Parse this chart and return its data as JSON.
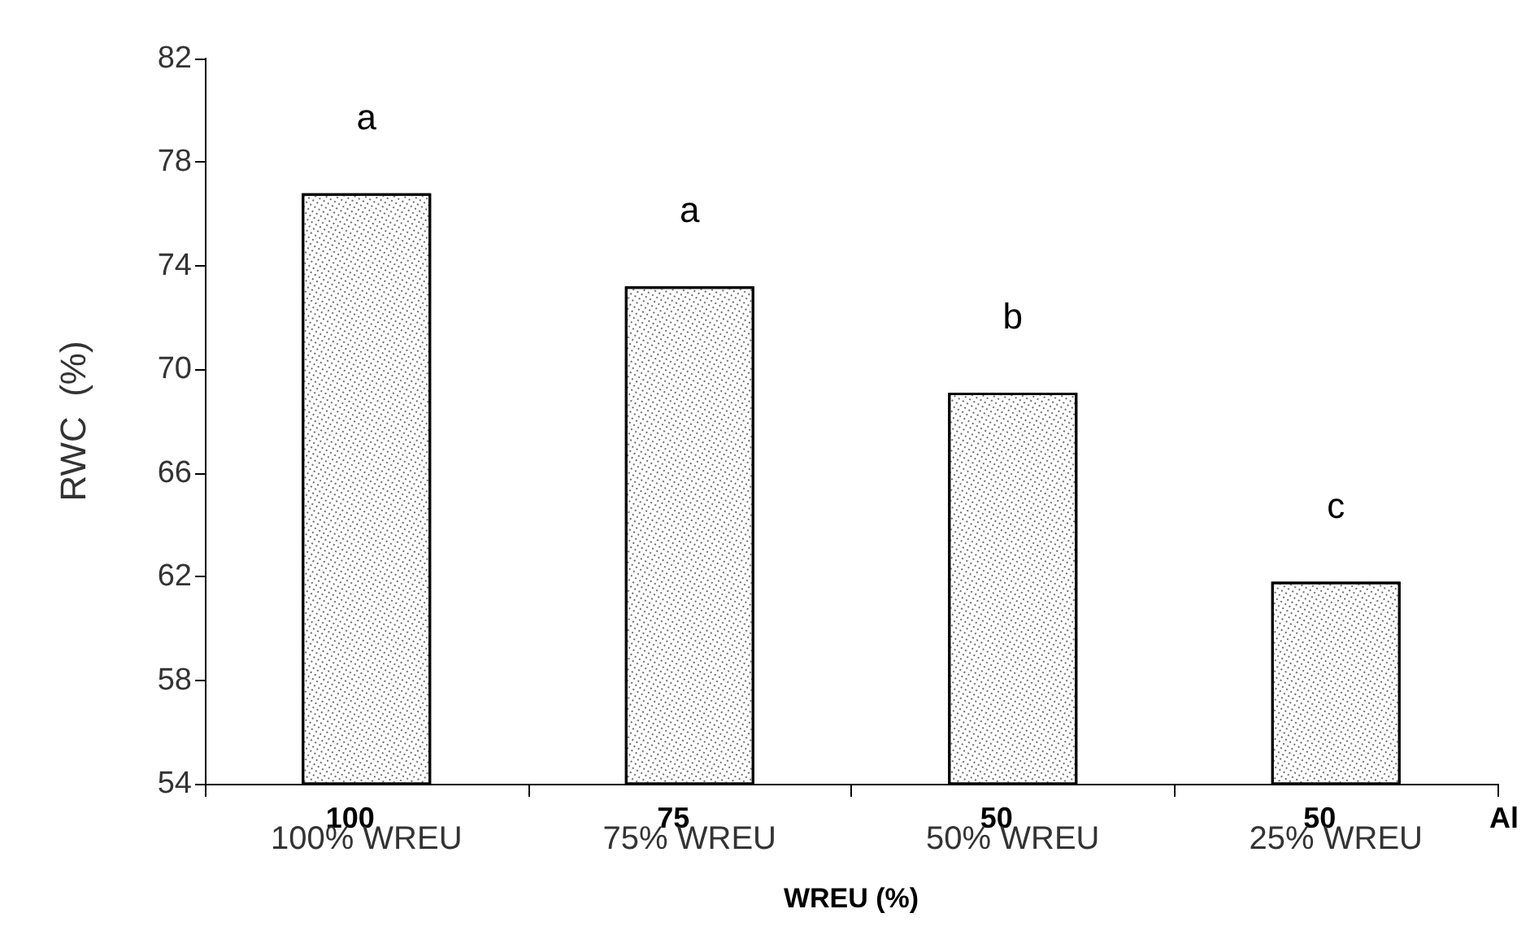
{
  "chart_data": {
    "type": "bar",
    "xlabel": "WREU (%)",
    "ylabel": "RWC  (%)",
    "categories": [
      "100% WREU",
      "75% WREU",
      "50% WREU",
      "25% WREU"
    ],
    "values": [
      76.8,
      73.2,
      69.1,
      61.8
    ],
    "value_labels": [
      "a",
      "a",
      "b",
      "c"
    ],
    "color": "#ffffff",
    "ylim": [
      54,
      82
    ],
    "yticks": [
      54,
      58,
      62,
      66,
      70,
      74,
      78,
      82
    ],
    "grid": false,
    "annotations": [
      "100",
      "75",
      "50",
      "50",
      "Al"
    ]
  }
}
